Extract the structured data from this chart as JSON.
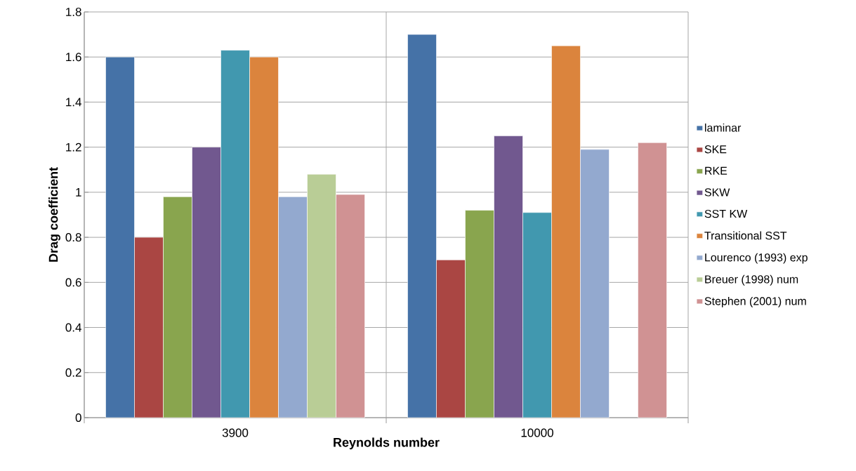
{
  "chart_data": {
    "type": "bar",
    "xlabel": "Reynolds number",
    "ylabel": "Drag coefficient",
    "categories": [
      "3900",
      "10000"
    ],
    "series": [
      {
        "name": "laminar",
        "color": "#4572a7",
        "values": [
          1.6,
          1.7
        ]
      },
      {
        "name": "SKE",
        "color": "#aa4643",
        "values": [
          0.8,
          0.7
        ]
      },
      {
        "name": "RKE",
        "color": "#89a54e",
        "values": [
          0.98,
          0.92
        ]
      },
      {
        "name": "SKW",
        "color": "#71588f",
        "values": [
          1.2,
          1.25
        ]
      },
      {
        "name": "SST KW",
        "color": "#4198af",
        "values": [
          1.63,
          0.91
        ]
      },
      {
        "name": "Transitional SST",
        "color": "#db843d",
        "values": [
          1.6,
          1.65
        ]
      },
      {
        "name": "Lourenco (1993) exp",
        "color": "#93a9cf",
        "values": [
          0.98,
          1.19
        ]
      },
      {
        "name": "Breuer (1998) num",
        "color": "#b9cd96",
        "values": [
          1.08,
          null
        ]
      },
      {
        "name": "Stephen (2001) num",
        "color": "#d09293",
        "values": [
          0.99,
          1.22
        ]
      }
    ],
    "ylim": [
      0,
      1.8
    ],
    "yticks": [
      0,
      0.2,
      0.4,
      0.6,
      0.8,
      1,
      1.2,
      1.4,
      1.6,
      1.8
    ],
    "grid": true,
    "legend": "right"
  }
}
